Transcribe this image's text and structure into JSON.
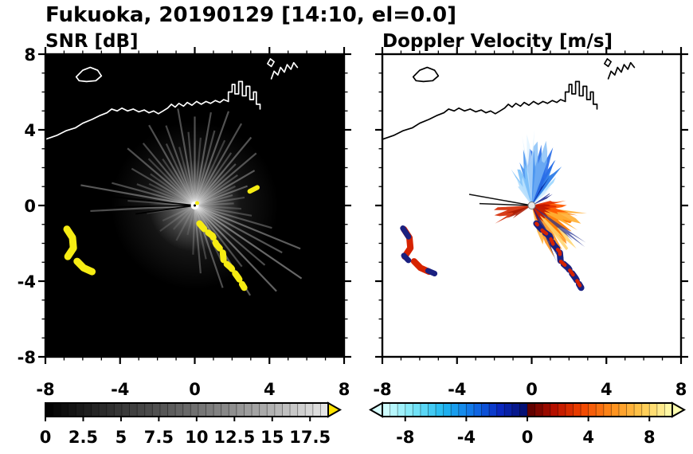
{
  "header": {
    "title": "Fukuoka, 20190129 [14:10, el=0.0]"
  },
  "panels": {
    "left_title": "SNR [dB]",
    "right_title": "Doppler Velocity [m/s]"
  },
  "axis": {
    "range": [
      -8,
      8
    ],
    "major_ticks": [
      -8,
      -4,
      0,
      4,
      8
    ],
    "major_labels": [
      "-8",
      "-4",
      "0",
      "4",
      "8"
    ],
    "minor_step": 1
  },
  "colorbars": {
    "snr": {
      "range": [
        0,
        18.7
      ],
      "segments": 37,
      "tick_values": [
        0,
        2.5,
        5,
        7.5,
        10,
        12.5,
        15,
        17.5
      ],
      "tick_labels": [
        "0",
        "2.5",
        "5",
        "7.5",
        "10",
        "12.5",
        "15",
        "17.5"
      ],
      "stops": [
        [
          0,
          "#000000"
        ],
        [
          4,
          "#2d2d2d"
        ],
        [
          8,
          "#585858"
        ],
        [
          12,
          "#8a8a8a"
        ],
        [
          15,
          "#b2b2b2"
        ],
        [
          18.7,
          "#e9e9e9"
        ]
      ],
      "arrow_right": "#ffe400"
    },
    "vel": {
      "range": [
        -9.5,
        9.5
      ],
      "segments": 38,
      "tick_values": [
        -8,
        -4,
        0,
        4,
        8
      ],
      "tick_labels": [
        "-8",
        "-4",
        "0",
        "4",
        "8"
      ],
      "stops": [
        [
          -9.5,
          "#d9ffff"
        ],
        [
          -7.5,
          "#7ce8f8"
        ],
        [
          -5.5,
          "#1fb8f0"
        ],
        [
          -3.5,
          "#1070e8"
        ],
        [
          -1.8,
          "#0a28c0"
        ],
        [
          -0.15,
          "#050f70"
        ],
        [
          0.15,
          "#5c0000"
        ],
        [
          1.8,
          "#b81000"
        ],
        [
          3.5,
          "#f04200"
        ],
        [
          5.5,
          "#ff8c1a"
        ],
        [
          7.5,
          "#ffc84d"
        ],
        [
          9.5,
          "#ffffb0"
        ]
      ],
      "arrow_left": "#d9ffff",
      "arrow_right": "#ffffb0"
    }
  },
  "chart_data": {
    "type": "heatmap",
    "title": "Fukuoka, 20190129 [14:10, el=0.0]",
    "radar_site": [
      0,
      0
    ],
    "panels": [
      {
        "name": "SNR [dB]",
        "units": "dB",
        "xlim": [
          -8,
          8
        ],
        "ylim": [
          -8,
          8
        ],
        "colorbar_range": [
          0,
          17.5
        ],
        "background": "#000000",
        "coast_color": "#ffffff",
        "beams": [
          [
            15,
            2.1,
            0.22
          ],
          [
            20,
            3.0,
            0.3
          ],
          [
            25,
            2.4,
            0.2
          ],
          [
            30,
            3.7,
            0.32
          ],
          [
            35,
            2.8,
            0.24
          ],
          [
            40,
            4.3,
            0.3
          ],
          [
            45,
            3.1,
            0.26
          ],
          [
            50,
            4.7,
            0.32
          ],
          [
            55,
            3.4,
            0.24
          ],
          [
            60,
            5.0,
            0.3
          ],
          [
            65,
            3.8,
            0.22
          ],
          [
            70,
            5.3,
            0.32
          ],
          [
            75,
            4.1,
            0.26
          ],
          [
            80,
            5.0,
            0.3
          ],
          [
            85,
            3.6,
            0.2
          ],
          [
            90,
            4.7,
            0.3
          ],
          [
            95,
            3.9,
            0.24
          ],
          [
            100,
            5.2,
            0.3
          ],
          [
            105,
            3.2,
            0.2
          ],
          [
            110,
            4.5,
            0.28
          ],
          [
            115,
            3.6,
            0.24
          ],
          [
            120,
            4.9,
            0.3
          ],
          [
            125,
            3.0,
            0.2
          ],
          [
            130,
            4.3,
            0.27
          ],
          [
            135,
            3.5,
            0.22
          ],
          [
            140,
            4.7,
            0.3
          ],
          [
            145,
            2.9,
            0.2
          ],
          [
            150,
            3.9,
            0.25
          ],
          [
            155,
            2.7,
            0.18
          ],
          [
            160,
            3.3,
            0.22
          ],
          [
            165,
            4.6,
            0.28
          ],
          [
            170,
            6.2,
            0.34
          ],
          [
            176,
            3.6,
            0.2
          ],
          [
            183,
            5.6,
            0.3
          ],
          [
            189,
            2.6,
            0.14
          ],
          [
            205,
            1.9,
            0.12
          ],
          [
            216,
            2.3,
            0.14
          ],
          [
            228,
            1.7,
            0.1
          ],
          [
            242,
            2.1,
            0.12
          ],
          [
            256,
            1.6,
            0.1
          ],
          [
            268,
            2.6,
            0.18
          ],
          [
            275,
            3.6,
            0.25
          ],
          [
            282,
            2.9,
            0.2
          ],
          [
            289,
            4.6,
            0.3
          ],
          [
            296,
            3.3,
            0.22
          ],
          [
            302,
            5.6,
            0.34
          ],
          [
            308,
            4.1,
            0.27
          ],
          [
            314,
            6.3,
            0.38
          ],
          [
            320,
            4.9,
            0.3
          ],
          [
            326,
            6.9,
            0.4
          ],
          [
            332,
            5.3,
            0.32
          ],
          [
            338,
            6.1,
            0.36
          ],
          [
            344,
            4.3,
            0.27
          ],
          [
            350,
            3.1,
            0.22
          ],
          [
            356,
            2.5,
            0.18
          ],
          [
            3,
            2.1,
            0.2
          ],
          [
            9,
            2.7,
            0.22
          ]
        ],
        "shadow_rays": [
          [
            174,
            4.6
          ],
          [
            181,
            4.2
          ],
          [
            188,
            3.2
          ]
        ],
        "clutter_color": "#f6ec13",
        "clutter_arcs": [
          [
            [
              -6.85,
              -1.25
            ],
            [
              -6.55,
              -1.7
            ],
            [
              -6.5,
              -2.25
            ],
            [
              -6.8,
              -2.7
            ]
          ],
          [
            [
              -6.3,
              -2.95
            ],
            [
              -5.95,
              -3.3
            ],
            [
              -5.5,
              -3.5
            ]
          ]
        ],
        "clutter_chain": [
          [
            0.25,
            -0.95
          ],
          [
            0.6,
            -1.35
          ],
          [
            0.95,
            -1.6
          ],
          [
            1.15,
            -2.05
          ],
          [
            1.5,
            -2.45
          ],
          [
            1.55,
            -2.95
          ],
          [
            1.95,
            -3.3
          ],
          [
            2.35,
            -3.85
          ],
          [
            2.65,
            -4.35
          ]
        ],
        "clutter_spot": [
          [
            2.95,
            0.75
          ],
          [
            3.35,
            0.95
          ]
        ]
      },
      {
        "name": "Doppler Velocity [m/s]",
        "units": "m/s",
        "xlim": [
          -8,
          8
        ],
        "ylim": [
          -8,
          8
        ],
        "colorbar_range": [
          -9.5,
          9.5
        ],
        "background": "#ffffff",
        "coast_color": "#000000",
        "wedges": [
          [
            46,
            62,
            2.1,
            "#9fd8ff",
            0.95
          ],
          [
            52,
            70,
            2.7,
            "#2e7de8",
            0.95
          ],
          [
            58,
            74,
            1.8,
            "#0a2da8",
            0.95
          ],
          [
            62,
            96,
            3.3,
            "#2a6fe8",
            0.92
          ],
          [
            70,
            92,
            3.7,
            "#79b8f5",
            0.75
          ],
          [
            84,
            106,
            3.0,
            "#4a95f0",
            0.92
          ],
          [
            96,
            120,
            2.3,
            "#7fc2fa",
            0.92
          ],
          [
            108,
            127,
            1.7,
            "#b9e0fd",
            0.95
          ],
          [
            88,
            98,
            4.0,
            "#d6eeff",
            0.6
          ],
          [
            40,
            50,
            1.5,
            "#cfeaff",
            0.9
          ],
          [
            24,
            34,
            1.3,
            "#12208a",
            0.85
          ],
          [
            -78,
            -58,
            2.3,
            "#ffb84d",
            0.95
          ],
          [
            -70,
            -40,
            3.0,
            "#ff9420",
            0.9
          ],
          [
            -52,
            -38,
            3.4,
            "#ffd36b",
            0.85
          ],
          [
            -45,
            -12,
            2.6,
            "#ff7a00",
            0.95
          ],
          [
            -28,
            -8,
            3.0,
            "#ffae33",
            0.9
          ],
          [
            -18,
            8,
            2.0,
            "#ff5a00",
            0.95
          ],
          [
            -8,
            14,
            1.5,
            "#e63000",
            0.95
          ],
          [
            -70,
            6,
            1.1,
            "#c01800",
            0.95
          ],
          [
            183,
            206,
            2.2,
            "#d42800",
            0.9
          ],
          [
            196,
            214,
            1.5,
            "#a81800",
            0.85
          ],
          [
            -66,
            -58,
            3.4,
            "#182488",
            0.8
          ],
          [
            -40,
            -34,
            3.6,
            "#202e90",
            0.7
          ]
        ],
        "shadow_rays": [
          [
            170,
            3.4
          ],
          [
            178,
            2.8
          ]
        ],
        "clutter_red_color": "#d62300",
        "clutter_navy_color": "#1a2080",
        "clutter_arcs_red": [
          [
            [
              -6.85,
              -1.25
            ],
            [
              -6.55,
              -1.7
            ],
            [
              -6.5,
              -2.25
            ],
            [
              -6.8,
              -2.7
            ]
          ],
          [
            [
              -6.3,
              -2.95
            ],
            [
              -5.95,
              -3.3
            ],
            [
              -5.5,
              -3.5
            ]
          ]
        ],
        "clutter_arcs_navy": [
          [
            [
              -6.9,
              -1.2
            ],
            [
              -6.6,
              -1.65
            ]
          ],
          [
            [
              -6.85,
              -2.65
            ],
            [
              -6.6,
              -2.9
            ]
          ],
          [
            [
              -5.55,
              -3.45
            ],
            [
              -5.2,
              -3.6
            ]
          ]
        ],
        "clutter_chain": [
          [
            0.25,
            -0.95
          ],
          [
            0.6,
            -1.35
          ],
          [
            0.95,
            -1.6
          ],
          [
            1.15,
            -2.05
          ],
          [
            1.5,
            -2.45
          ],
          [
            1.55,
            -2.95
          ],
          [
            1.95,
            -3.3
          ],
          [
            2.35,
            -3.85
          ],
          [
            2.65,
            -4.35
          ]
        ]
      }
    ],
    "coastline": {
      "main": [
        [
          -8,
          3.5
        ],
        [
          -7.4,
          3.7
        ],
        [
          -6.9,
          3.95
        ],
        [
          -6.4,
          4.1
        ],
        [
          -6.0,
          4.35
        ],
        [
          -5.5,
          4.55
        ],
        [
          -5.1,
          4.75
        ],
        [
          -4.7,
          4.9
        ],
        [
          -4.45,
          5.1
        ],
        [
          -4.15,
          5.0
        ],
        [
          -3.9,
          5.15
        ],
        [
          -3.6,
          5.0
        ],
        [
          -3.3,
          5.1
        ],
        [
          -3.0,
          4.95
        ],
        [
          -2.7,
          5.05
        ],
        [
          -2.45,
          4.9
        ],
        [
          -2.2,
          5.0
        ],
        [
          -1.95,
          4.85
        ],
        [
          -1.7,
          5.0
        ],
        [
          -1.45,
          5.15
        ],
        [
          -1.25,
          5.35
        ],
        [
          -1.05,
          5.2
        ],
        [
          -0.85,
          5.4
        ],
        [
          -0.6,
          5.25
        ],
        [
          -0.4,
          5.45
        ],
        [
          -0.15,
          5.3
        ],
        [
          0.1,
          5.5
        ],
        [
          0.35,
          5.35
        ],
        [
          0.6,
          5.5
        ],
        [
          0.85,
          5.4
        ],
        [
          1.1,
          5.55
        ],
        [
          1.35,
          5.45
        ],
        [
          1.55,
          5.6
        ],
        [
          1.8,
          5.5
        ]
      ],
      "port": [
        [
          1.8,
          5.5
        ],
        [
          1.8,
          6.0
        ],
        [
          2.0,
          6.0
        ],
        [
          2.0,
          6.4
        ],
        [
          2.15,
          6.4
        ],
        [
          2.15,
          5.9
        ],
        [
          2.35,
          5.9
        ],
        [
          2.35,
          6.55
        ],
        [
          2.55,
          6.55
        ],
        [
          2.55,
          5.8
        ],
        [
          2.75,
          5.8
        ],
        [
          2.75,
          6.3
        ],
        [
          2.95,
          6.3
        ],
        [
          2.95,
          5.6
        ],
        [
          3.15,
          5.6
        ],
        [
          3.15,
          6.0
        ],
        [
          3.3,
          6.0
        ],
        [
          3.3,
          5.35
        ],
        [
          3.5,
          5.35
        ],
        [
          3.5,
          5.1
        ]
      ],
      "island": [
        [
          -6.35,
          6.8
        ],
        [
          -6.0,
          7.15
        ],
        [
          -5.6,
          7.3
        ],
        [
          -5.2,
          7.15
        ],
        [
          -5.0,
          6.85
        ],
        [
          -5.3,
          6.6
        ],
        [
          -5.8,
          6.55
        ],
        [
          -6.2,
          6.6
        ]
      ],
      "spur": [
        [
          4.1,
          6.7
        ],
        [
          4.25,
          7.1
        ],
        [
          4.45,
          6.9
        ],
        [
          4.6,
          7.3
        ],
        [
          4.8,
          7.05
        ],
        [
          4.95,
          7.45
        ],
        [
          5.15,
          7.2
        ],
        [
          5.3,
          7.55
        ],
        [
          5.5,
          7.3
        ]
      ],
      "hook": [
        [
          3.9,
          7.5
        ],
        [
          4.05,
          7.75
        ],
        [
          4.25,
          7.6
        ],
        [
          4.1,
          7.35
        ]
      ]
    }
  }
}
